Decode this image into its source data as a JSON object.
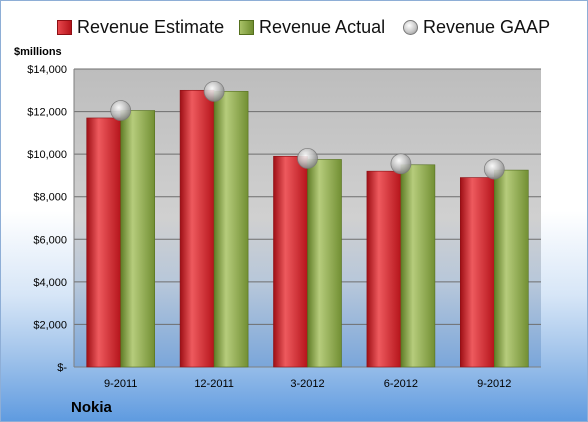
{
  "legend": {
    "estimate": "Revenue Estimate",
    "actual": "Revenue Actual",
    "gaap": "Revenue GAAP"
  },
  "unit_label": "$millions",
  "company": "Nokia",
  "colors": {
    "estimate": "#c8161d",
    "actual": "#8aab44",
    "gaap": "#bdbdbd"
  },
  "chart_data": {
    "type": "bar",
    "title": "",
    "xlabel": "",
    "ylabel": "$millions",
    "categories": [
      "9-2011",
      "12-2011",
      "3-2012",
      "6-2012",
      "9-2012"
    ],
    "ylim": [
      0,
      14000
    ],
    "yticks": [
      0,
      2000,
      4000,
      6000,
      8000,
      10000,
      12000,
      14000
    ],
    "ytick_labels": [
      "$-",
      "$2,000",
      "$4,000",
      "$6,000",
      "$8,000",
      "$10,000",
      "$12,000",
      "$14,000"
    ],
    "legend_position": "top",
    "grid": true,
    "series": [
      {
        "name": "Revenue Estimate",
        "type": "bar",
        "values": [
          11700,
          13000,
          9900,
          9200,
          8900
        ]
      },
      {
        "name": "Revenue Actual",
        "type": "bar",
        "values": [
          12050,
          12950,
          9750,
          9500,
          9250
        ]
      },
      {
        "name": "Revenue GAAP",
        "type": "marker",
        "values": [
          12050,
          12950,
          9800,
          9550,
          9300
        ]
      }
    ]
  }
}
